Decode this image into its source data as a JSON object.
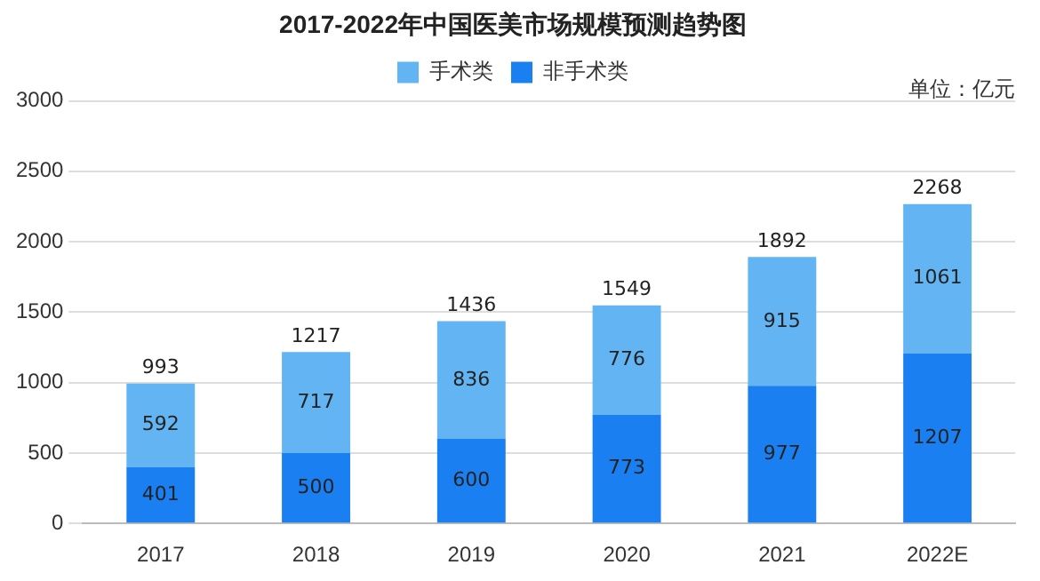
{
  "chart_data": {
    "type": "bar",
    "title": "2017-2022年中国医美市场规模预测趋势图",
    "categories": [
      "2017",
      "2018",
      "2019",
      "2020",
      "2021",
      "2022E"
    ],
    "series": [
      {
        "name": "非手术类",
        "color": "#1a7ff0",
        "values": [
          401,
          500,
          600,
          773,
          977,
          1207
        ]
      },
      {
        "name": "手术类",
        "color": "#62b4f2",
        "values": [
          592,
          717,
          836,
          776,
          915,
          1061
        ]
      }
    ],
    "stacked": true,
    "data_labels": true,
    "totals": [
      "993",
      "1217",
      "1436",
      "1549",
      "1892",
      "2268"
    ],
    "ylim": [
      0,
      3000
    ],
    "yticks": [
      0,
      500,
      1000,
      1500,
      2000,
      2500,
      3000
    ],
    "grid": "y",
    "legend": "top",
    "annotations": [
      "单位：亿元"
    ]
  }
}
